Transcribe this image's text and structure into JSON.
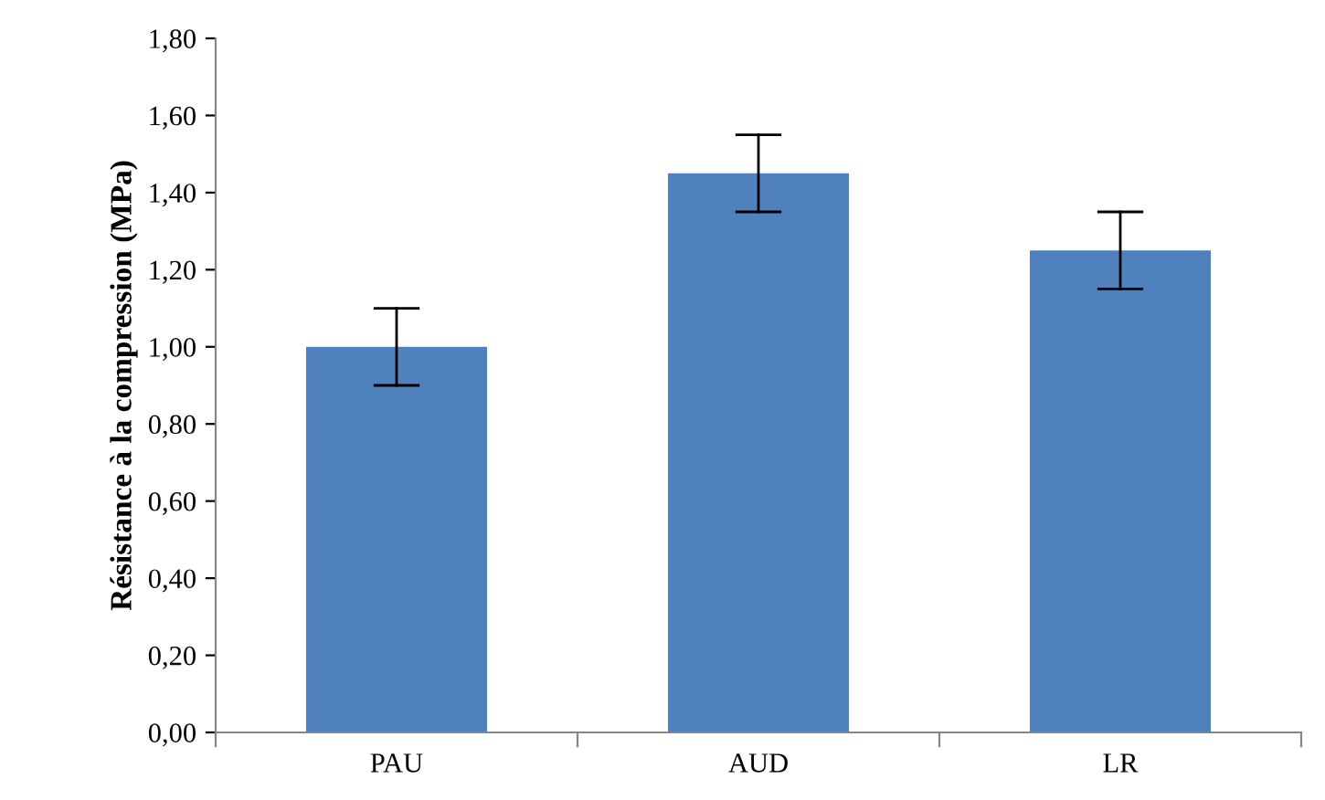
{
  "chart_data": {
    "type": "bar",
    "ylabel": "Résistance à la compression (MPa)",
    "categories": [
      "PAU",
      "AUD",
      "LR"
    ],
    "values": [
      1.0,
      1.45,
      1.25
    ],
    "errors": [
      0.1,
      0.1,
      0.1
    ],
    "color": "#4f81bd",
    "ylim": [
      0,
      1.8
    ],
    "yticks": [
      {
        "value": 0,
        "label": "0,00"
      },
      {
        "value": 0.2,
        "label": "0,20"
      },
      {
        "value": 0.4,
        "label": "0,40"
      },
      {
        "value": 0.6,
        "label": "0,60"
      },
      {
        "value": 0.8,
        "label": "0,80"
      },
      {
        "value": 1.0,
        "label": "1,00"
      },
      {
        "value": 1.2,
        "label": "1,20"
      },
      {
        "value": 1.4,
        "label": "1,40"
      },
      {
        "value": 1.6,
        "label": "1,60"
      },
      {
        "value": 1.8,
        "label": "1,80"
      }
    ],
    "grid": false,
    "legend": false
  }
}
